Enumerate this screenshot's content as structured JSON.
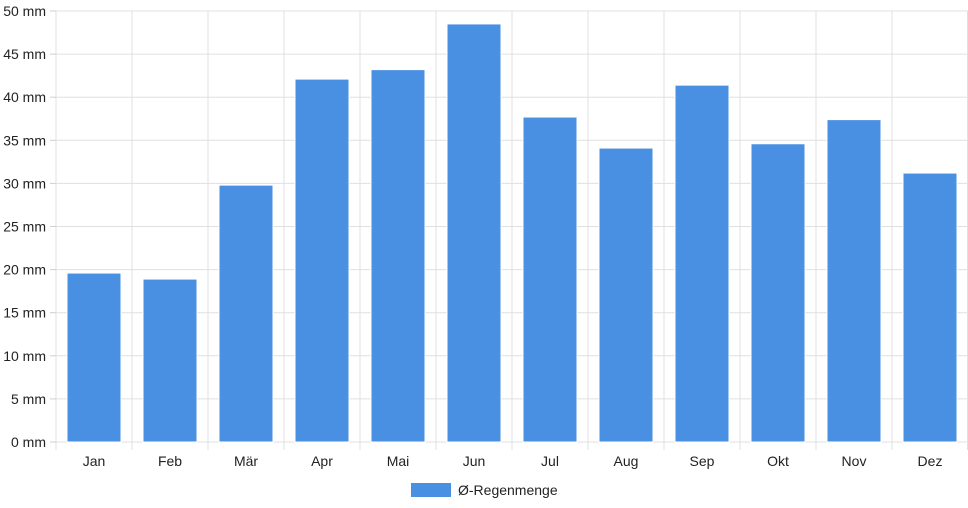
{
  "chart_data": {
    "type": "bar",
    "categories": [
      "Jan",
      "Feb",
      "Mär",
      "Apr",
      "Mai",
      "Jun",
      "Jul",
      "Aug",
      "Sep",
      "Okt",
      "Nov",
      "Dez"
    ],
    "series": [
      {
        "name": "Ø-Regenmenge",
        "color": "#4a90e2",
        "values": [
          19.6,
          18.9,
          29.8,
          42.1,
          43.2,
          48.5,
          37.7,
          34.1,
          41.4,
          34.6,
          37.4,
          31.2
        ]
      }
    ],
    "y_ticks": [
      "0 mm",
      "5 mm",
      "10 mm",
      "15 mm",
      "20 mm",
      "25 mm",
      "30 mm",
      "35 mm",
      "40 mm",
      "45 mm",
      "50 mm"
    ],
    "ylim": [
      0,
      50
    ],
    "y_unit": "mm",
    "grid": true,
    "legend_position": "bottom"
  }
}
